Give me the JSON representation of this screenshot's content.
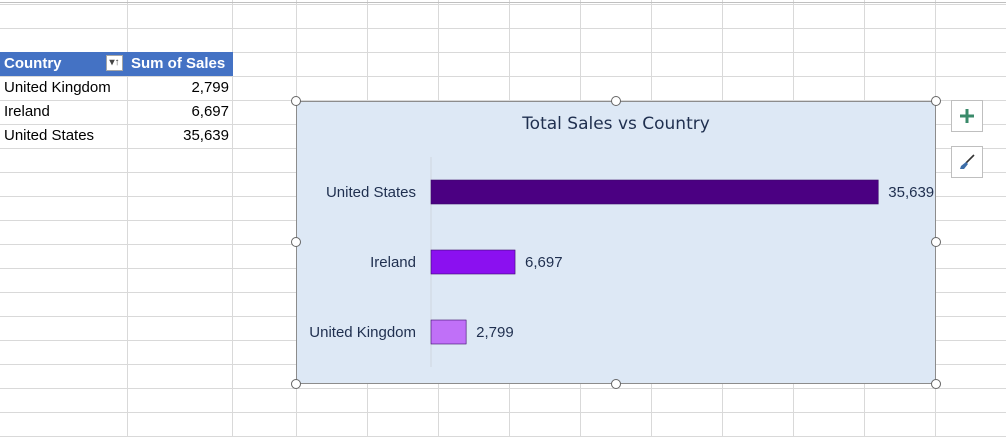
{
  "pivot": {
    "headers": [
      "Country",
      "Sum of Sales"
    ],
    "rows": [
      {
        "country": "United Kingdom",
        "sales": "2,799"
      },
      {
        "country": "Ireland",
        "sales": "6,697"
      },
      {
        "country": "United States",
        "sales": "35,639"
      }
    ],
    "filter_icon": "filter-dropdown-icon"
  },
  "chart_data": {
    "type": "bar",
    "orientation": "horizontal",
    "title": "Total Sales vs Country",
    "categories": [
      "United States",
      "Ireland",
      "United Kingdom"
    ],
    "values": [
      35639,
      6697,
      2799
    ],
    "value_labels": [
      "35,639",
      "6,697",
      "2,799"
    ],
    "bar_colors": [
      "#4b0082",
      "#8b10f0",
      "#c070f8"
    ],
    "xlim": [
      0,
      40000
    ],
    "grid": false,
    "legend": "none",
    "background": "#dde8f5"
  },
  "chart_buttons": {
    "add_element_icon": "plus-icon",
    "style_icon": "paintbrush-icon"
  }
}
